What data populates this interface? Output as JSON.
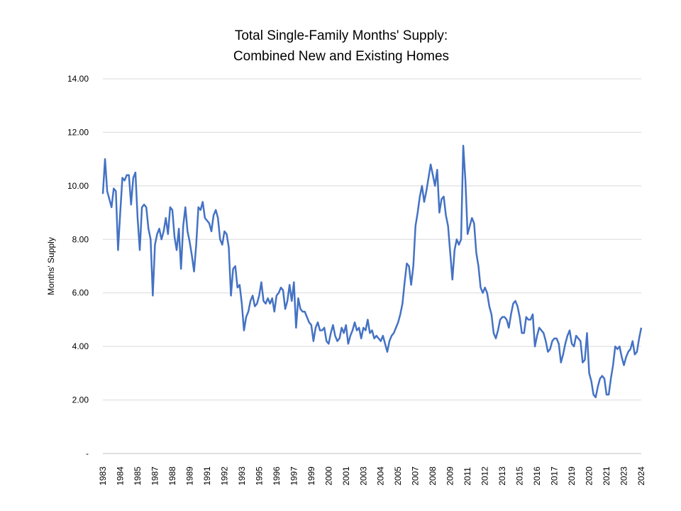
{
  "chart_data": {
    "type": "line",
    "title": [
      "Total Single-Family Months' Supply:",
      "Combined New and Existing Homes"
    ],
    "y_label": "Months' Supply",
    "categories": [
      "1983",
      null,
      null,
      null,
      null,
      null,
      null,
      null,
      "1984",
      null,
      null,
      null,
      null,
      null,
      null,
      null,
      "1985",
      null,
      null,
      null,
      null,
      null,
      null,
      null,
      "1987",
      null,
      null,
      null,
      null,
      null,
      null,
      null,
      "1988",
      null,
      null,
      null,
      null,
      null,
      null,
      null,
      "1989",
      null,
      null,
      null,
      null,
      null,
      null,
      null,
      "1991",
      null,
      null,
      null,
      null,
      null,
      null,
      null,
      "1992",
      null,
      null,
      null,
      null,
      null,
      null,
      null,
      "1993",
      null,
      null,
      null,
      null,
      null,
      null,
      null,
      "1995",
      null,
      null,
      null,
      null,
      null,
      null,
      null,
      "1996",
      null,
      null,
      null,
      null,
      null,
      null,
      null,
      "1997",
      null,
      null,
      null,
      null,
      null,
      null,
      null,
      "1999",
      null,
      null,
      null,
      null,
      null,
      null,
      null,
      "2000",
      null,
      null,
      null,
      null,
      null,
      null,
      null,
      "2001",
      null,
      null,
      null,
      null,
      null,
      null,
      null,
      "2003",
      null,
      null,
      null,
      null,
      null,
      null,
      null,
      "2004",
      null,
      null,
      null,
      null,
      null,
      null,
      null,
      "2005",
      null,
      null,
      null,
      null,
      null,
      null,
      null,
      "2007",
      null,
      null,
      null,
      null,
      null,
      null,
      null,
      "2008",
      null,
      null,
      null,
      null,
      null,
      null,
      null,
      "2009",
      null,
      null,
      null,
      null,
      null,
      null,
      null,
      "2011",
      null,
      null,
      null,
      null,
      null,
      null,
      null,
      "2012",
      null,
      null,
      null,
      null,
      null,
      null,
      null,
      "2013",
      null,
      null,
      null,
      null,
      null,
      null,
      null,
      "2015",
      null,
      null,
      null,
      null,
      null,
      null,
      null,
      "2016",
      null,
      null,
      null,
      null,
      null,
      null,
      null,
      "2017",
      null,
      null,
      null,
      null,
      null,
      null,
      null,
      "2019",
      null,
      null,
      null,
      null,
      null,
      null,
      null,
      "2020",
      null,
      null,
      null,
      null,
      null,
      null,
      null,
      "2021",
      null,
      null,
      null,
      null,
      null,
      null,
      null,
      "2023",
      null,
      null,
      null,
      null,
      null,
      null,
      null,
      "2024"
    ],
    "series": [
      {
        "color": "#4472c4",
        "values": [
          9.7,
          11.0,
          9.8,
          9.5,
          9.2,
          9.9,
          9.8,
          7.6,
          9.0,
          10.3,
          10.2,
          10.4,
          10.4,
          9.3,
          10.3,
          10.5,
          8.8,
          7.6,
          9.2,
          9.3,
          9.2,
          8.4,
          8.0,
          5.9,
          7.8,
          8.2,
          8.4,
          8.0,
          8.3,
          8.8,
          8.2,
          9.2,
          9.1,
          8.1,
          7.6,
          8.4,
          6.9,
          8.5,
          9.2,
          8.3,
          7.9,
          7.4,
          6.8,
          7.8,
          9.2,
          9.1,
          9.4,
          8.8,
          8.7,
          8.6,
          8.3,
          8.9,
          9.1,
          8.8,
          8.0,
          7.8,
          8.3,
          8.2,
          7.7,
          5.9,
          6.9,
          7.0,
          6.2,
          6.3,
          5.6,
          4.6,
          5.1,
          5.3,
          5.7,
          5.9,
          5.5,
          5.6,
          5.9,
          6.4,
          5.7,
          5.6,
          5.8,
          5.6,
          5.8,
          5.3,
          5.9,
          6.0,
          6.2,
          6.1,
          5.4,
          5.7,
          6.3,
          5.7,
          6.4,
          4.7,
          5.8,
          5.4,
          5.3,
          5.3,
          5.1,
          4.9,
          4.8,
          4.2,
          4.7,
          4.9,
          4.6,
          4.6,
          4.7,
          4.2,
          4.1,
          4.5,
          4.8,
          4.4,
          4.2,
          4.3,
          4.7,
          4.5,
          4.8,
          4.1,
          4.4,
          4.6,
          4.9,
          4.6,
          4.7,
          4.3,
          4.7,
          4.6,
          5.0,
          4.5,
          4.6,
          4.3,
          4.4,
          4.3,
          4.2,
          4.4,
          4.1,
          3.8,
          4.2,
          4.4,
          4.5,
          4.7,
          4.9,
          5.2,
          5.6,
          6.4,
          7.1,
          7.0,
          6.3,
          7.0,
          8.5,
          9.0,
          9.6,
          10.0,
          9.4,
          9.8,
          10.3,
          10.8,
          10.4,
          10.0,
          10.6,
          9.0,
          9.5,
          9.6,
          8.9,
          8.5,
          7.5,
          6.5,
          7.6,
          8.0,
          7.8,
          8.0,
          11.5,
          10.2,
          8.2,
          8.5,
          8.8,
          8.6,
          7.5,
          7.0,
          6.2,
          6.0,
          6.2,
          6.0,
          5.5,
          5.2,
          4.5,
          4.3,
          4.6,
          5.0,
          5.1,
          5.1,
          5.0,
          4.7,
          5.2,
          5.6,
          5.7,
          5.5,
          5.1,
          4.5,
          4.5,
          5.1,
          5.0,
          5.0,
          5.2,
          4.0,
          4.4,
          4.7,
          4.6,
          4.5,
          4.2,
          3.8,
          3.9,
          4.2,
          4.3,
          4.3,
          4.1,
          3.4,
          3.7,
          4.1,
          4.4,
          4.6,
          4.1,
          4.0,
          4.4,
          4.3,
          4.2,
          3.4,
          3.5,
          4.5,
          3.0,
          2.7,
          2.2,
          2.1,
          2.5,
          2.8,
          2.9,
          2.8,
          2.2,
          2.2,
          2.8,
          3.3,
          4.0,
          3.9,
          4.0,
          3.6,
          3.3,
          3.6,
          3.8,
          3.9,
          4.2,
          3.7,
          3.8,
          4.3,
          4.7
        ]
      }
    ],
    "ylim": [
      0,
      14
    ],
    "yticks": [
      {
        "value": 0,
        "label": "-"
      },
      {
        "value": 2,
        "label": "2.00"
      },
      {
        "value": 4,
        "label": "4.00"
      },
      {
        "value": 6,
        "label": "6.00"
      },
      {
        "value": 8,
        "label": "8.00"
      },
      {
        "value": 10,
        "label": "10.00"
      },
      {
        "value": 12,
        "label": "12.00"
      },
      {
        "value": 14,
        "label": "14.00"
      }
    ],
    "grid": true
  }
}
